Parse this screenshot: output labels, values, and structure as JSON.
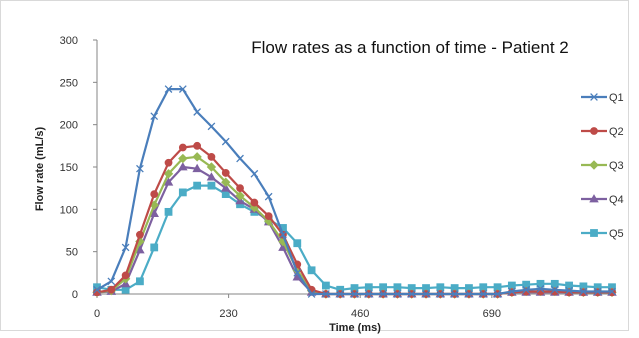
{
  "chart_data": {
    "type": "line",
    "title": "Flow rates as a function of time - Patient 2",
    "xlabel": "Time (ms)",
    "ylabel": "Flow rate (mL/s)",
    "xlim": [
      0,
      900
    ],
    "ylim": [
      0,
      300
    ],
    "xticks": [
      0,
      230,
      460,
      690
    ],
    "yticks": [
      0,
      50,
      100,
      150,
      200,
      250,
      300
    ],
    "grid": false,
    "legend": "right",
    "x": [
      0,
      25,
      50,
      75,
      100,
      125,
      150,
      175,
      200,
      225,
      250,
      275,
      300,
      325,
      350,
      375,
      400,
      425,
      450,
      475,
      500,
      525,
      550,
      575,
      600,
      625,
      650,
      675,
      700,
      725,
      750,
      775,
      800,
      825,
      850,
      875,
      900
    ],
    "series": [
      {
        "name": "Q1",
        "color": "#4a7ebb",
        "marker": "x",
        "values": [
          5,
          15,
          55,
          148,
          210,
          242,
          242,
          215,
          198,
          180,
          160,
          142,
          115,
          70,
          25,
          0,
          0,
          0,
          0,
          0,
          0,
          0,
          0,
          0,
          0,
          0,
          0,
          0,
          0,
          3,
          5,
          6,
          5,
          4,
          3,
          3,
          3
        ]
      },
      {
        "name": "Q2",
        "color": "#be4b48",
        "marker": "circle",
        "values": [
          2,
          5,
          22,
          70,
          118,
          155,
          173,
          175,
          162,
          143,
          125,
          108,
          92,
          70,
          35,
          5,
          0,
          0,
          0,
          0,
          0,
          0,
          0,
          0,
          0,
          0,
          0,
          0,
          0,
          2,
          3,
          3,
          3,
          2,
          2,
          2,
          2
        ]
      },
      {
        "name": "Q3",
        "color": "#98b954",
        "marker": "diamond",
        "values": [
          2,
          4,
          18,
          62,
          105,
          142,
          160,
          162,
          150,
          132,
          116,
          102,
          86,
          62,
          28,
          4,
          0,
          0,
          0,
          0,
          0,
          0,
          0,
          0,
          0,
          0,
          0,
          0,
          0,
          2,
          3,
          3,
          3,
          2,
          2,
          2,
          2
        ]
      },
      {
        "name": "Q4",
        "color": "#7d60a0",
        "marker": "triangle",
        "values": [
          2,
          3,
          12,
          52,
          95,
          132,
          150,
          148,
          138,
          125,
          110,
          100,
          85,
          55,
          20,
          2,
          0,
          0,
          0,
          0,
          0,
          0,
          0,
          0,
          0,
          0,
          0,
          0,
          0,
          2,
          2,
          2,
          2,
          2,
          2,
          2,
          2
        ]
      },
      {
        "name": "Q5",
        "color": "#4bacc6",
        "marker": "square",
        "values": [
          8,
          5,
          5,
          15,
          55,
          97,
          120,
          128,
          128,
          118,
          106,
          97,
          88,
          78,
          60,
          28,
          10,
          5,
          7,
          8,
          8,
          8,
          7,
          7,
          8,
          7,
          7,
          8,
          8,
          10,
          11,
          12,
          12,
          10,
          9,
          8,
          8
        ]
      }
    ]
  }
}
